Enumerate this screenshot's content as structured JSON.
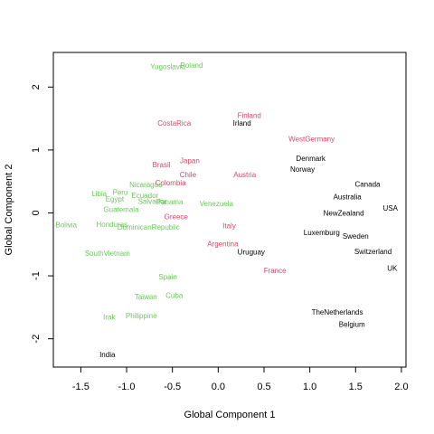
{
  "chart_data": {
    "type": "scatter",
    "title": "",
    "xlabel": "Global Component 1",
    "ylabel": "Global Component 2",
    "xlim": [
      -1.8,
      2.05
    ],
    "ylim": [
      -2.45,
      2.55
    ],
    "x_ticks": [
      -1.5,
      -1.0,
      -0.5,
      0.0,
      0.5,
      1.0,
      1.5,
      2.0
    ],
    "x_tick_labels": [
      "-1.5",
      "-1.0",
      "-0.5",
      "0.0",
      "0.5",
      "1.0",
      "1.5",
      "2.0"
    ],
    "y_ticks": [
      -2,
      -1,
      0,
      1,
      2
    ],
    "y_tick_labels": [
      "-2",
      "-1",
      "0",
      "1",
      "2"
    ],
    "grid": false,
    "legend": "none",
    "colors": {
      "green": "#66CC55",
      "red": "#DD4466",
      "black": "#000000"
    },
    "points": [
      {
        "label": "Yugoslavia",
        "x": -0.55,
        "y": 2.33,
        "color": "green"
      },
      {
        "label": "Poland",
        "x": -0.29,
        "y": 2.35,
        "color": "green"
      },
      {
        "label": "Finland",
        "x": 0.34,
        "y": 1.55,
        "color": "red"
      },
      {
        "label": "Irland",
        "x": 0.26,
        "y": 1.43,
        "color": "black"
      },
      {
        "label": "CostaRica",
        "x": -0.48,
        "y": 1.43,
        "color": "red"
      },
      {
        "label": "WestGermany",
        "x": 1.02,
        "y": 1.18,
        "color": "red"
      },
      {
        "label": "Denmark",
        "x": 1.01,
        "y": 0.87,
        "color": "black"
      },
      {
        "label": "Norway",
        "x": 0.92,
        "y": 0.7,
        "color": "black"
      },
      {
        "label": "Japan",
        "x": -0.31,
        "y": 0.83,
        "color": "red"
      },
      {
        "label": "Brasil",
        "x": -0.62,
        "y": 0.77,
        "color": "red"
      },
      {
        "label": "Chile",
        "x": -0.33,
        "y": 0.61,
        "color": "red"
      },
      {
        "label": "Austria",
        "x": 0.29,
        "y": 0.61,
        "color": "red"
      },
      {
        "label": "Colombia",
        "x": -0.52,
        "y": 0.48,
        "color": "red"
      },
      {
        "label": "Canada",
        "x": 1.63,
        "y": 0.46,
        "color": "black"
      },
      {
        "label": "Nicaragua",
        "x": -0.79,
        "y": 0.45,
        "color": "green"
      },
      {
        "label": "Peru",
        "x": -1.07,
        "y": 0.33,
        "color": "green"
      },
      {
        "label": "Libia",
        "x": -1.3,
        "y": 0.31,
        "color": "green"
      },
      {
        "label": "Ecuador",
        "x": -0.8,
        "y": 0.28,
        "color": "green"
      },
      {
        "label": "Egypt",
        "x": -1.13,
        "y": 0.22,
        "color": "green"
      },
      {
        "label": "Salvador",
        "x": -0.72,
        "y": 0.19,
        "color": "green"
      },
      {
        "label": "Panama",
        "x": -0.53,
        "y": 0.18,
        "color": "green"
      },
      {
        "label": "Venezuela",
        "x": -0.02,
        "y": 0.15,
        "color": "green"
      },
      {
        "label": "Australia",
        "x": 1.41,
        "y": 0.26,
        "color": "black"
      },
      {
        "label": "USA",
        "x": 1.88,
        "y": 0.08,
        "color": "black"
      },
      {
        "label": "Guatemala",
        "x": -1.06,
        "y": 0.06,
        "color": "green"
      },
      {
        "label": "NewZealand",
        "x": 1.37,
        "y": 0.0,
        "color": "black"
      },
      {
        "label": "Greece",
        "x": -0.46,
        "y": -0.06,
        "color": "red"
      },
      {
        "label": "Bolivia",
        "x": -1.66,
        "y": -0.19,
        "color": "green"
      },
      {
        "label": "Honduras",
        "x": -1.16,
        "y": -0.18,
        "color": "green"
      },
      {
        "label": "DominicanRepublic",
        "x": -0.76,
        "y": -0.22,
        "color": "green"
      },
      {
        "label": "Italy",
        "x": 0.12,
        "y": -0.2,
        "color": "red"
      },
      {
        "label": "Luxemburg",
        "x": 1.13,
        "y": -0.31,
        "color": "black"
      },
      {
        "label": "Sweden",
        "x": 1.5,
        "y": -0.37,
        "color": "black"
      },
      {
        "label": "Argentina",
        "x": 0.05,
        "y": -0.49,
        "color": "red"
      },
      {
        "label": "Uruguay",
        "x": 0.36,
        "y": -0.62,
        "color": "black"
      },
      {
        "label": "Switzerland",
        "x": 1.69,
        "y": -0.61,
        "color": "black"
      },
      {
        "label": "SouthVietnam",
        "x": -1.21,
        "y": -0.64,
        "color": "green"
      },
      {
        "label": "France",
        "x": 0.62,
        "y": -0.91,
        "color": "red"
      },
      {
        "label": "UK",
        "x": 1.9,
        "y": -0.88,
        "color": "black"
      },
      {
        "label": "Spain",
        "x": -0.55,
        "y": -1.01,
        "color": "green"
      },
      {
        "label": "Taiwan",
        "x": -0.79,
        "y": -1.33,
        "color": "green"
      },
      {
        "label": "Cuba",
        "x": -0.48,
        "y": -1.31,
        "color": "green"
      },
      {
        "label": "TheNetherlands",
        "x": 1.3,
        "y": -1.57,
        "color": "black"
      },
      {
        "label": "Philippine",
        "x": -0.84,
        "y": -1.63,
        "color": "green"
      },
      {
        "label": "Irak",
        "x": -1.19,
        "y": -1.65,
        "color": "green"
      },
      {
        "label": "Belgium",
        "x": 1.46,
        "y": -1.77,
        "color": "black"
      },
      {
        "label": "India",
        "x": -1.21,
        "y": -2.25,
        "color": "black"
      }
    ]
  }
}
